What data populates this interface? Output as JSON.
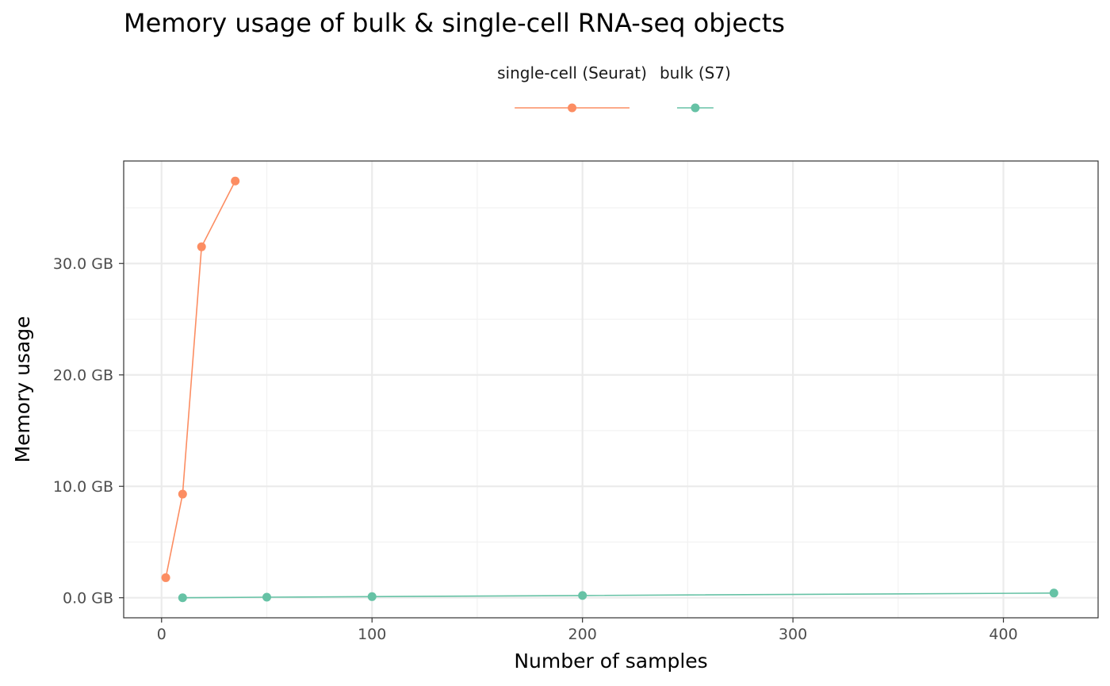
{
  "chart_data": {
    "type": "line",
    "title": "Memory usage of bulk & single-cell RNA-seq objects",
    "xlabel": "Number of samples",
    "ylabel": "Memory usage",
    "xlim": [
      -18,
      445
    ],
    "ylim": [
      -1.8,
      39.2
    ],
    "x_ticks": [
      0,
      100,
      200,
      300,
      400
    ],
    "x_tick_labels": [
      "0",
      "100",
      "200",
      "300",
      "400"
    ],
    "y_ticks": [
      0,
      10,
      20,
      30
    ],
    "y_tick_labels": [
      "0.0 GB",
      "10.0 GB",
      "20.0 GB",
      "30.0 GB"
    ],
    "grid": true,
    "legend_position": "top",
    "series": [
      {
        "name": "single-cell (Seurat)",
        "color": "#FC8D62",
        "x": [
          2,
          10,
          19,
          35
        ],
        "y": [
          1.8,
          9.3,
          31.5,
          37.4
        ]
      },
      {
        "name": "bulk (S7)",
        "color": "#66C2A5",
        "x": [
          10,
          50,
          100,
          200,
          424
        ],
        "y": [
          0.0,
          0.05,
          0.1,
          0.2,
          0.42
        ]
      }
    ]
  }
}
